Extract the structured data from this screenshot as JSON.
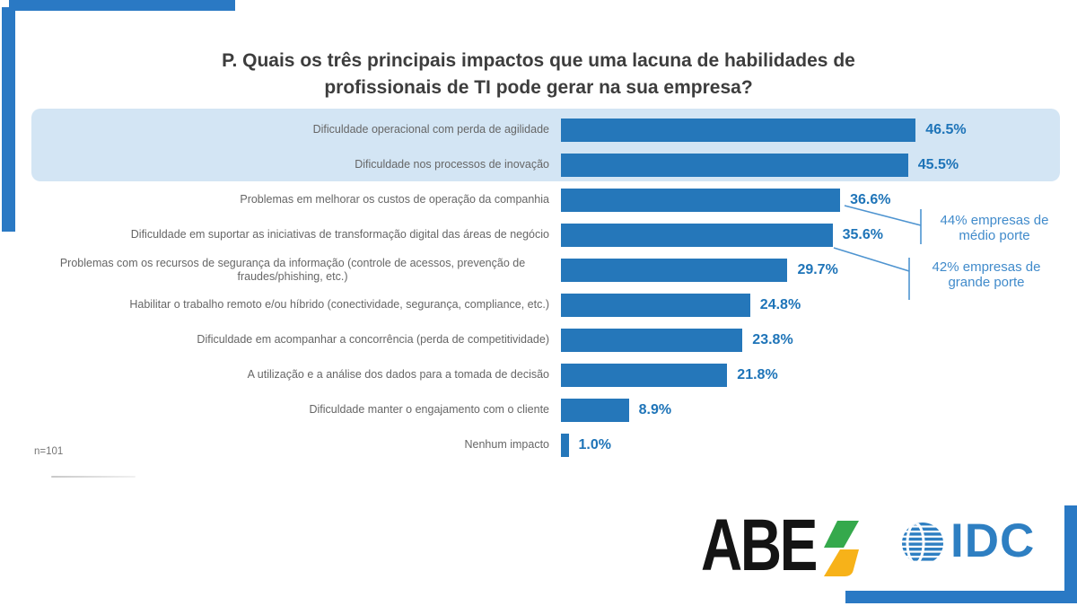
{
  "title": {
    "lines": [
      "P. Quais os três principais impactos que uma lacuna de habilidades de",
      "profissionais de TI pode gerar na sua empresa?"
    ]
  },
  "chart_data": {
    "type": "bar",
    "orientation": "horizontal",
    "value_unit": "%",
    "xlim": [
      0,
      50
    ],
    "grid": false,
    "categories": [
      "Dificuldade operacional com perda de agilidade",
      "Dificuldade nos processos de inovação",
      "Problemas em melhorar os custos de operação da companhia",
      "Dificuldade em suportar as iniciativas de transformação digital das áreas de negócio",
      "Problemas com os recursos de segurança da informação (controle de acessos, prevenção de fraudes/phishing, etc.)",
      "Habilitar o trabalho remoto e/ou híbrido (conectividade, segurança, compliance, etc.)",
      "Dificuldade em acompanhar a concorrência (perda de competitividade)",
      "A utilização e a análise dos dados para a tomada de decisão",
      "Dificuldade manter o engajamento com o cliente",
      "Nenhum impacto"
    ],
    "values": [
      46.5,
      45.5,
      36.6,
      35.6,
      29.7,
      24.8,
      23.8,
      21.8,
      8.9,
      1.0
    ],
    "value_labels": [
      "46.5%",
      "45.5%",
      "36.6%",
      "35.6%",
      "29.7%",
      "24.8%",
      "23.8%",
      "21.8%",
      "8.9%",
      "1.0%"
    ],
    "highlighted_rows": [
      0,
      1
    ],
    "centered_label_rows": [
      4
    ],
    "annotations": [
      {
        "text": "44% empresas de médio porte",
        "from_row": 2
      },
      {
        "text": "42% empresas de grande porte",
        "from_row": 3
      }
    ],
    "colors": {
      "bar": "#2577BA",
      "value_label": "#1E74B8",
      "highlight_band": "#D3E5F4",
      "annotation_text": "#418BCB",
      "connector_line": "#4E94D0",
      "accent_corner": "#2A79C4"
    }
  },
  "footer": {
    "sample_note": "n=101"
  },
  "logos": {
    "abes": {
      "letters": "ABE",
      "stylized_letter": "S"
    },
    "idc": {
      "letters": "IDC"
    }
  }
}
